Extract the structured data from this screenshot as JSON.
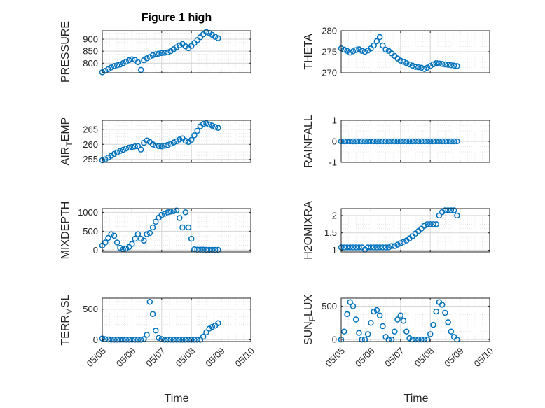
{
  "figure": {
    "title": "Figure 1 high",
    "xlabel": "Time",
    "marker_color": "#0072BD"
  },
  "chart_data": [
    {
      "type": "scatter",
      "ylabel": "PRESSURE",
      "ylim": [
        760,
        935
      ],
      "yticks": [
        800,
        850,
        900
      ],
      "xlim": [
        0,
        5
      ],
      "xticks": [
        "05/05",
        "05/06",
        "05/07",
        "05/08",
        "05/09",
        "05/10"
      ],
      "grid": true,
      "show_xticklabels": false,
      "series": [
        {
          "x": [
            0.0,
            0.1,
            0.2,
            0.3,
            0.4,
            0.5,
            0.6,
            0.7,
            0.8,
            0.9,
            1.0,
            1.1,
            1.2,
            1.3,
            1.4,
            1.5,
            1.6,
            1.7,
            1.8,
            1.9,
            2.0,
            2.1,
            2.2,
            2.3,
            2.4,
            2.5,
            2.6,
            2.7,
            2.8,
            2.9,
            3.0,
            3.1,
            3.2,
            3.3,
            3.4,
            3.5,
            3.6,
            3.7,
            3.8,
            3.9
          ],
          "values": [
            762,
            768,
            775,
            782,
            788,
            791,
            794,
            800,
            806,
            812,
            816,
            814,
            804,
            772,
            812,
            820,
            826,
            833,
            837,
            840,
            842,
            843,
            845,
            850,
            858,
            866,
            874,
            880,
            870,
            862,
            872,
            884,
            896,
            908,
            920,
            930,
            926,
            918,
            910,
            904
          ]
        }
      ]
    },
    {
      "type": "scatter",
      "ylabel": "THETA",
      "ylim": [
        270,
        280
      ],
      "yticks": [
        270,
        275,
        280
      ],
      "xlim": [
        0,
        5
      ],
      "xticks": [
        "05/05",
        "05/06",
        "05/07",
        "05/08",
        "05/09",
        "05/10"
      ],
      "grid": true,
      "show_xticklabels": false,
      "series": [
        {
          "x": [
            0.0,
            0.1,
            0.2,
            0.3,
            0.4,
            0.5,
            0.6,
            0.7,
            0.8,
            0.9,
            1.0,
            1.1,
            1.2,
            1.3,
            1.4,
            1.5,
            1.6,
            1.7,
            1.8,
            1.9,
            2.0,
            2.1,
            2.2,
            2.3,
            2.4,
            2.5,
            2.6,
            2.7,
            2.8,
            2.9,
            3.0,
            3.1,
            3.2,
            3.3,
            3.4,
            3.5,
            3.6,
            3.7,
            3.8,
            3.9
          ],
          "values": [
            275.8,
            275.5,
            275.2,
            274.8,
            275.1,
            275.4,
            275.6,
            275.2,
            275.0,
            275.3,
            275.8,
            276.5,
            277.5,
            278.5,
            276.5,
            275.5,
            275.2,
            274.6,
            274.0,
            273.4,
            272.9,
            272.6,
            272.3,
            272.0,
            271.7,
            271.4,
            271.3,
            271.2,
            270.9,
            271.2,
            271.6,
            272.0,
            272.3,
            272.2,
            272.1,
            272.0,
            271.9,
            271.8,
            271.7,
            271.6
          ]
        }
      ]
    },
    {
      "type": "scatter",
      "ylabel": "AIR_TEMP",
      "ylim": [
        254,
        268
      ],
      "yticks": [
        255,
        260,
        265
      ],
      "xlim": [
        0,
        5
      ],
      "xticks": [
        "05/05",
        "05/06",
        "05/07",
        "05/08",
        "05/09",
        "05/10"
      ],
      "grid": true,
      "show_xticklabels": false,
      "series": [
        {
          "x": [
            0.0,
            0.1,
            0.2,
            0.3,
            0.4,
            0.5,
            0.6,
            0.7,
            0.8,
            0.9,
            1.0,
            1.1,
            1.2,
            1.3,
            1.4,
            1.5,
            1.6,
            1.7,
            1.8,
            1.9,
            2.0,
            2.1,
            2.2,
            2.3,
            2.4,
            2.5,
            2.6,
            2.7,
            2.8,
            2.9,
            3.0,
            3.1,
            3.2,
            3.3,
            3.4,
            3.5,
            3.6,
            3.7,
            3.8,
            3.9
          ],
          "values": [
            254.7,
            255.0,
            255.6,
            256.2,
            256.8,
            257.3,
            257.8,
            258.2,
            258.6,
            258.9,
            259.1,
            259.3,
            259.4,
            258.3,
            260.5,
            261.3,
            260.8,
            260.0,
            259.6,
            259.4,
            259.3,
            259.5,
            259.8,
            260.2,
            260.6,
            261.0,
            261.6,
            262.0,
            261.2,
            260.8,
            261.5,
            263.0,
            264.5,
            266.0,
            266.8,
            267.0,
            266.6,
            266.2,
            265.8,
            265.5
          ]
        }
      ]
    },
    {
      "type": "scatter",
      "ylabel": "RAINFALL",
      "ylim": [
        -1,
        1
      ],
      "yticks": [
        -1,
        0,
        1
      ],
      "xlim": [
        0,
        5
      ],
      "xticks": [
        "05/05",
        "05/06",
        "05/07",
        "05/08",
        "05/09",
        "05/10"
      ],
      "grid": true,
      "show_xticklabels": false,
      "series": [
        {
          "x": [
            0.0,
            0.1,
            0.2,
            0.3,
            0.4,
            0.5,
            0.6,
            0.7,
            0.8,
            0.9,
            1.0,
            1.1,
            1.2,
            1.3,
            1.4,
            1.5,
            1.6,
            1.7,
            1.8,
            1.9,
            2.0,
            2.1,
            2.2,
            2.3,
            2.4,
            2.5,
            2.6,
            2.7,
            2.8,
            2.9,
            3.0,
            3.1,
            3.2,
            3.3,
            3.4,
            3.5,
            3.6,
            3.7,
            3.8,
            3.9
          ],
          "values": [
            0,
            0,
            0,
            0,
            0,
            0,
            0,
            0,
            0,
            0,
            0,
            0,
            0,
            0,
            0,
            0,
            0,
            0,
            0,
            0,
            0,
            0,
            0,
            0,
            0,
            0,
            0,
            0,
            0,
            0,
            0,
            0,
            0,
            0,
            0,
            0,
            0,
            0,
            0,
            0
          ]
        }
      ]
    },
    {
      "type": "scatter",
      "ylabel": "MIXDEPTH",
      "ylim": [
        -50,
        1100
      ],
      "yticks": [
        0,
        500,
        1000
      ],
      "xlim": [
        0,
        5
      ],
      "xticks": [
        "05/05",
        "05/06",
        "05/07",
        "05/08",
        "05/09",
        "05/10"
      ],
      "grid": true,
      "show_xticklabels": false,
      "series": [
        {
          "x": [
            0.0,
            0.1,
            0.2,
            0.3,
            0.4,
            0.5,
            0.6,
            0.7,
            0.8,
            0.9,
            1.0,
            1.1,
            1.2,
            1.3,
            1.4,
            1.5,
            1.6,
            1.7,
            1.8,
            1.9,
            2.0,
            2.1,
            2.2,
            2.3,
            2.4,
            2.5,
            2.6,
            2.7,
            2.8,
            2.9,
            3.0,
            3.1,
            3.2,
            3.3,
            3.4,
            3.5,
            3.6,
            3.7,
            3.8,
            3.9
          ],
          "values": [
            120,
            200,
            320,
            420,
            380,
            200,
            60,
            20,
            40,
            80,
            160,
            300,
            420,
            300,
            250,
            420,
            450,
            600,
            750,
            860,
            930,
            960,
            1000,
            1020,
            1030,
            1050,
            850,
            600,
            1000,
            600,
            300,
            20,
            10,
            10,
            10,
            5,
            5,
            5,
            5,
            5
          ]
        }
      ]
    },
    {
      "type": "scatter",
      "ylabel": "H2OMIXRA",
      "ylim": [
        0.95,
        2.2
      ],
      "yticks": [
        1,
        1.5,
        2
      ],
      "xlim": [
        0,
        5
      ],
      "xticks": [
        "05/05",
        "05/06",
        "05/07",
        "05/08",
        "05/09",
        "05/10"
      ],
      "grid": true,
      "show_xticklabels": false,
      "series": [
        {
          "x": [
            0.0,
            0.1,
            0.2,
            0.3,
            0.4,
            0.5,
            0.6,
            0.7,
            0.8,
            0.9,
            1.0,
            1.1,
            1.2,
            1.3,
            1.4,
            1.5,
            1.6,
            1.7,
            1.8,
            1.9,
            2.0,
            2.1,
            2.2,
            2.3,
            2.4,
            2.5,
            2.6,
            2.7,
            2.8,
            2.9,
            3.0,
            3.1,
            3.2,
            3.3,
            3.4,
            3.5,
            3.6,
            3.7,
            3.8,
            3.9
          ],
          "values": [
            1.08,
            1.08,
            1.08,
            1.08,
            1.08,
            1.08,
            1.08,
            1.08,
            1.02,
            1.08,
            1.08,
            1.08,
            1.08,
            1.08,
            1.08,
            1.08,
            1.08,
            1.12,
            1.12,
            1.16,
            1.2,
            1.24,
            1.28,
            1.34,
            1.4,
            1.48,
            1.55,
            1.62,
            1.7,
            1.75,
            1.75,
            1.75,
            1.75,
            2.0,
            2.1,
            2.15,
            2.15,
            2.15,
            2.15,
            2.0
          ]
        }
      ]
    },
    {
      "type": "scatter",
      "ylabel": "TERR_MSL",
      "ylim": [
        -30,
        680
      ],
      "yticks": [
        0,
        500
      ],
      "xlim": [
        0,
        5
      ],
      "xticks": [
        "05/05",
        "05/06",
        "05/07",
        "05/08",
        "05/09",
        "05/10"
      ],
      "grid": true,
      "show_xticklabels": true,
      "series": [
        {
          "x": [
            0.0,
            0.1,
            0.2,
            0.3,
            0.4,
            0.5,
            0.6,
            0.7,
            0.8,
            0.9,
            1.0,
            1.1,
            1.2,
            1.3,
            1.4,
            1.5,
            1.6,
            1.7,
            1.8,
            1.9,
            2.0,
            2.1,
            2.2,
            2.3,
            2.4,
            2.5,
            2.6,
            2.7,
            2.8,
            2.9,
            3.0,
            3.1,
            3.2,
            3.3,
            3.4,
            3.5,
            3.6,
            3.7,
            3.8,
            3.9
          ],
          "values": [
            20,
            10,
            5,
            0,
            0,
            0,
            0,
            0,
            0,
            0,
            0,
            0,
            0,
            0,
            10,
            80,
            620,
            420,
            150,
            30,
            10,
            0,
            0,
            0,
            0,
            0,
            0,
            0,
            0,
            0,
            0,
            0,
            0,
            0,
            50,
            120,
            180,
            210,
            230,
            270
          ]
        }
      ]
    },
    {
      "type": "scatter",
      "ylabel": "SUN_FLUX",
      "ylim": [
        -30,
        620
      ],
      "yticks": [
        0,
        500
      ],
      "xlim": [
        0,
        5
      ],
      "xticks": [
        "05/05",
        "05/06",
        "05/07",
        "05/08",
        "05/09",
        "05/10"
      ],
      "grid": true,
      "show_xticklabels": true,
      "series": [
        {
          "x": [
            0.0,
            0.1,
            0.2,
            0.3,
            0.4,
            0.5,
            0.6,
            0.7,
            0.8,
            0.9,
            1.0,
            1.1,
            1.2,
            1.3,
            1.4,
            1.5,
            1.6,
            1.7,
            1.8,
            1.9,
            2.0,
            2.1,
            2.2,
            2.3,
            2.4,
            2.5,
            2.6,
            2.7,
            2.8,
            2.9,
            3.0,
            3.1,
            3.2,
            3.3,
            3.4,
            3.5,
            3.6,
            3.7,
            3.8,
            3.9
          ],
          "values": [
            0,
            120,
            380,
            560,
            500,
            300,
            100,
            0,
            0,
            80,
            250,
            420,
            440,
            360,
            200,
            40,
            0,
            0,
            120,
            300,
            360,
            280,
            120,
            20,
            0,
            0,
            0,
            0,
            0,
            0,
            80,
            220,
            420,
            560,
            520,
            400,
            260,
            120,
            40,
            0
          ]
        }
      ]
    }
  ]
}
